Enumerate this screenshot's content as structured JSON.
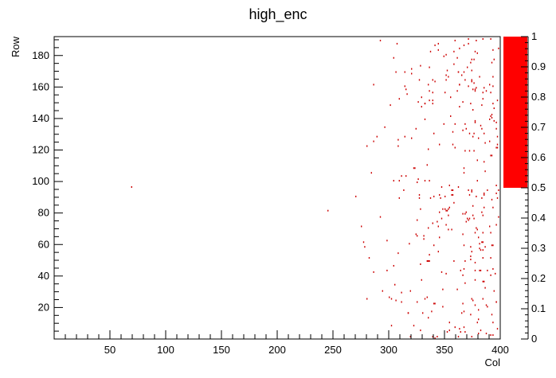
{
  "chart_data": {
    "type": "heatmap",
    "title": "high_enc",
    "xlabel": "Col",
    "ylabel": "Row",
    "xlim": [
      0,
      400
    ],
    "ylim": [
      0,
      192
    ],
    "x_ticks": [
      50,
      100,
      150,
      200,
      250,
      300,
      350,
      400
    ],
    "y_ticks": [
      20,
      40,
      60,
      80,
      100,
      120,
      140,
      160,
      180
    ],
    "colorbar": {
      "range": [
        0,
        1
      ],
      "ticks": [
        "0",
        "0.1",
        "0.2",
        "0.3",
        "0.4",
        "0.5",
        "0.6",
        "0.7",
        "0.8",
        "0.9",
        "1"
      ],
      "filled_range": [
        0.5,
        1
      ],
      "fill_color": "#ff0000"
    },
    "cell_color": "#cc0000",
    "isolated_cells": [
      {
        "col": 69,
        "row": 96,
        "value": 1
      },
      {
        "col": 245,
        "row": 81,
        "value": 1
      }
    ],
    "dense_region": {
      "col_range": [
        265,
        400
      ],
      "row_range": [
        0,
        192
      ],
      "value": 1,
      "approx_cell_count": 360
    }
  }
}
